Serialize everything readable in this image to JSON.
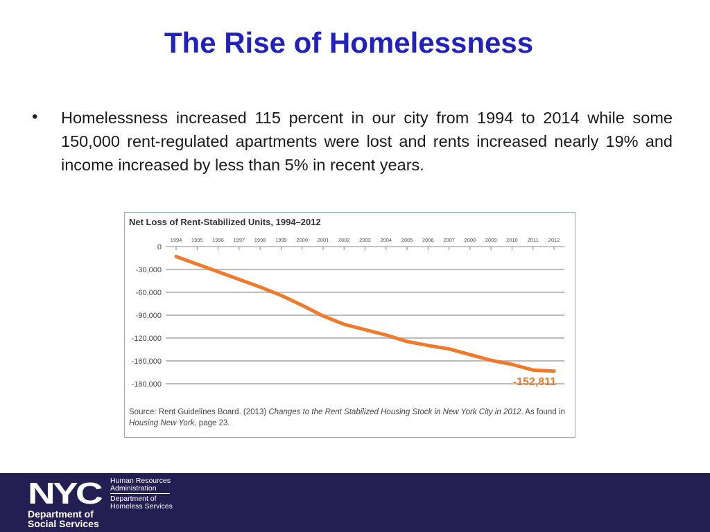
{
  "slide": {
    "title": "The Rise of Homelessness",
    "bullet_marker": "•",
    "bullet_text": "Homelessness increased 115 percent in our city from 1994 to 2014 while some 150,000 rent-regulated apartments were lost and rents increased nearly 19% and income increased by less than 5% in recent years."
  },
  "chart_data": {
    "type": "line",
    "title": "Net Loss of Rent-Stabilized Units, 1994–2012",
    "x": [
      "1994",
      "1995",
      "1996",
      "1997",
      "1998",
      "1999",
      "2000",
      "2001",
      "2002",
      "2003",
      "2004",
      "2005",
      "2006",
      "2007",
      "2008",
      "2009",
      "2010",
      "2011",
      "2012"
    ],
    "series": [
      {
        "values": [
          -13000,
          -23000,
          -33000,
          -43000,
          -53000,
          -64000,
          -77000,
          -91000,
          -102000,
          -109000,
          -116000,
          -126000,
          -133000,
          -139000,
          -149000,
          -159000,
          -163000,
          -168000,
          -169000
        ]
      }
    ],
    "yticks": [
      0,
      -30000,
      -60000,
      -90000,
      -120000,
      -160000,
      -180000
    ],
    "ytick_labels": [
      "0",
      "-30,000",
      "-60,000",
      "-90,000",
      "-120,000",
      "-160,000",
      "-180,000"
    ],
    "ylim": [
      -180000,
      0
    ],
    "grid": true,
    "x_axis_position": "top",
    "annotation": "-152,811",
    "line_color": "#f07a2a",
    "annotation_color": "#f07a2a"
  },
  "source": {
    "prefix": "Source: Rent Guidelines Board. (2013) ",
    "italic1": "Changes to the Rent Stabilized Housing Stock in New York City in 2012",
    "mid": ". As found in ",
    "italic2": "Housing New York",
    "suffix": ", page 23."
  },
  "footer": {
    "logo_text": "NYC",
    "dss_line1": "Department of",
    "dss_line2": "Social Services",
    "agency1_line1": "Human Resources",
    "agency1_line2": "Administration",
    "agency2_line1": "Department of",
    "agency2_line2": "Homeless Services",
    "background": "#231f52"
  }
}
